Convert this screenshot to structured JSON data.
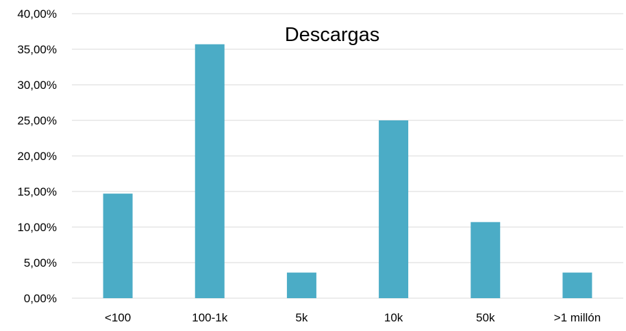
{
  "chart_data": {
    "type": "bar",
    "title": "Descargas",
    "xlabel": "",
    "ylabel": "",
    "categories": [
      "<100",
      "100-1k",
      "5k",
      "10k",
      "50k",
      ">1 millón"
    ],
    "values": [
      14.7,
      35.7,
      3.6,
      25.0,
      10.7,
      3.6
    ],
    "ylim": [
      0,
      40
    ],
    "yticks": [
      0,
      5,
      10,
      15,
      20,
      25,
      30,
      35,
      40
    ],
    "ytick_labels": [
      "0,00%",
      "5,00%",
      "10,00%",
      "15,00%",
      "20,00%",
      "25,00%",
      "30,00%",
      "35,00%",
      "40,00%"
    ],
    "grid": true,
    "legend": "none",
    "bar_color": "#4BACC6",
    "grid_color": "#D9D9D9"
  }
}
